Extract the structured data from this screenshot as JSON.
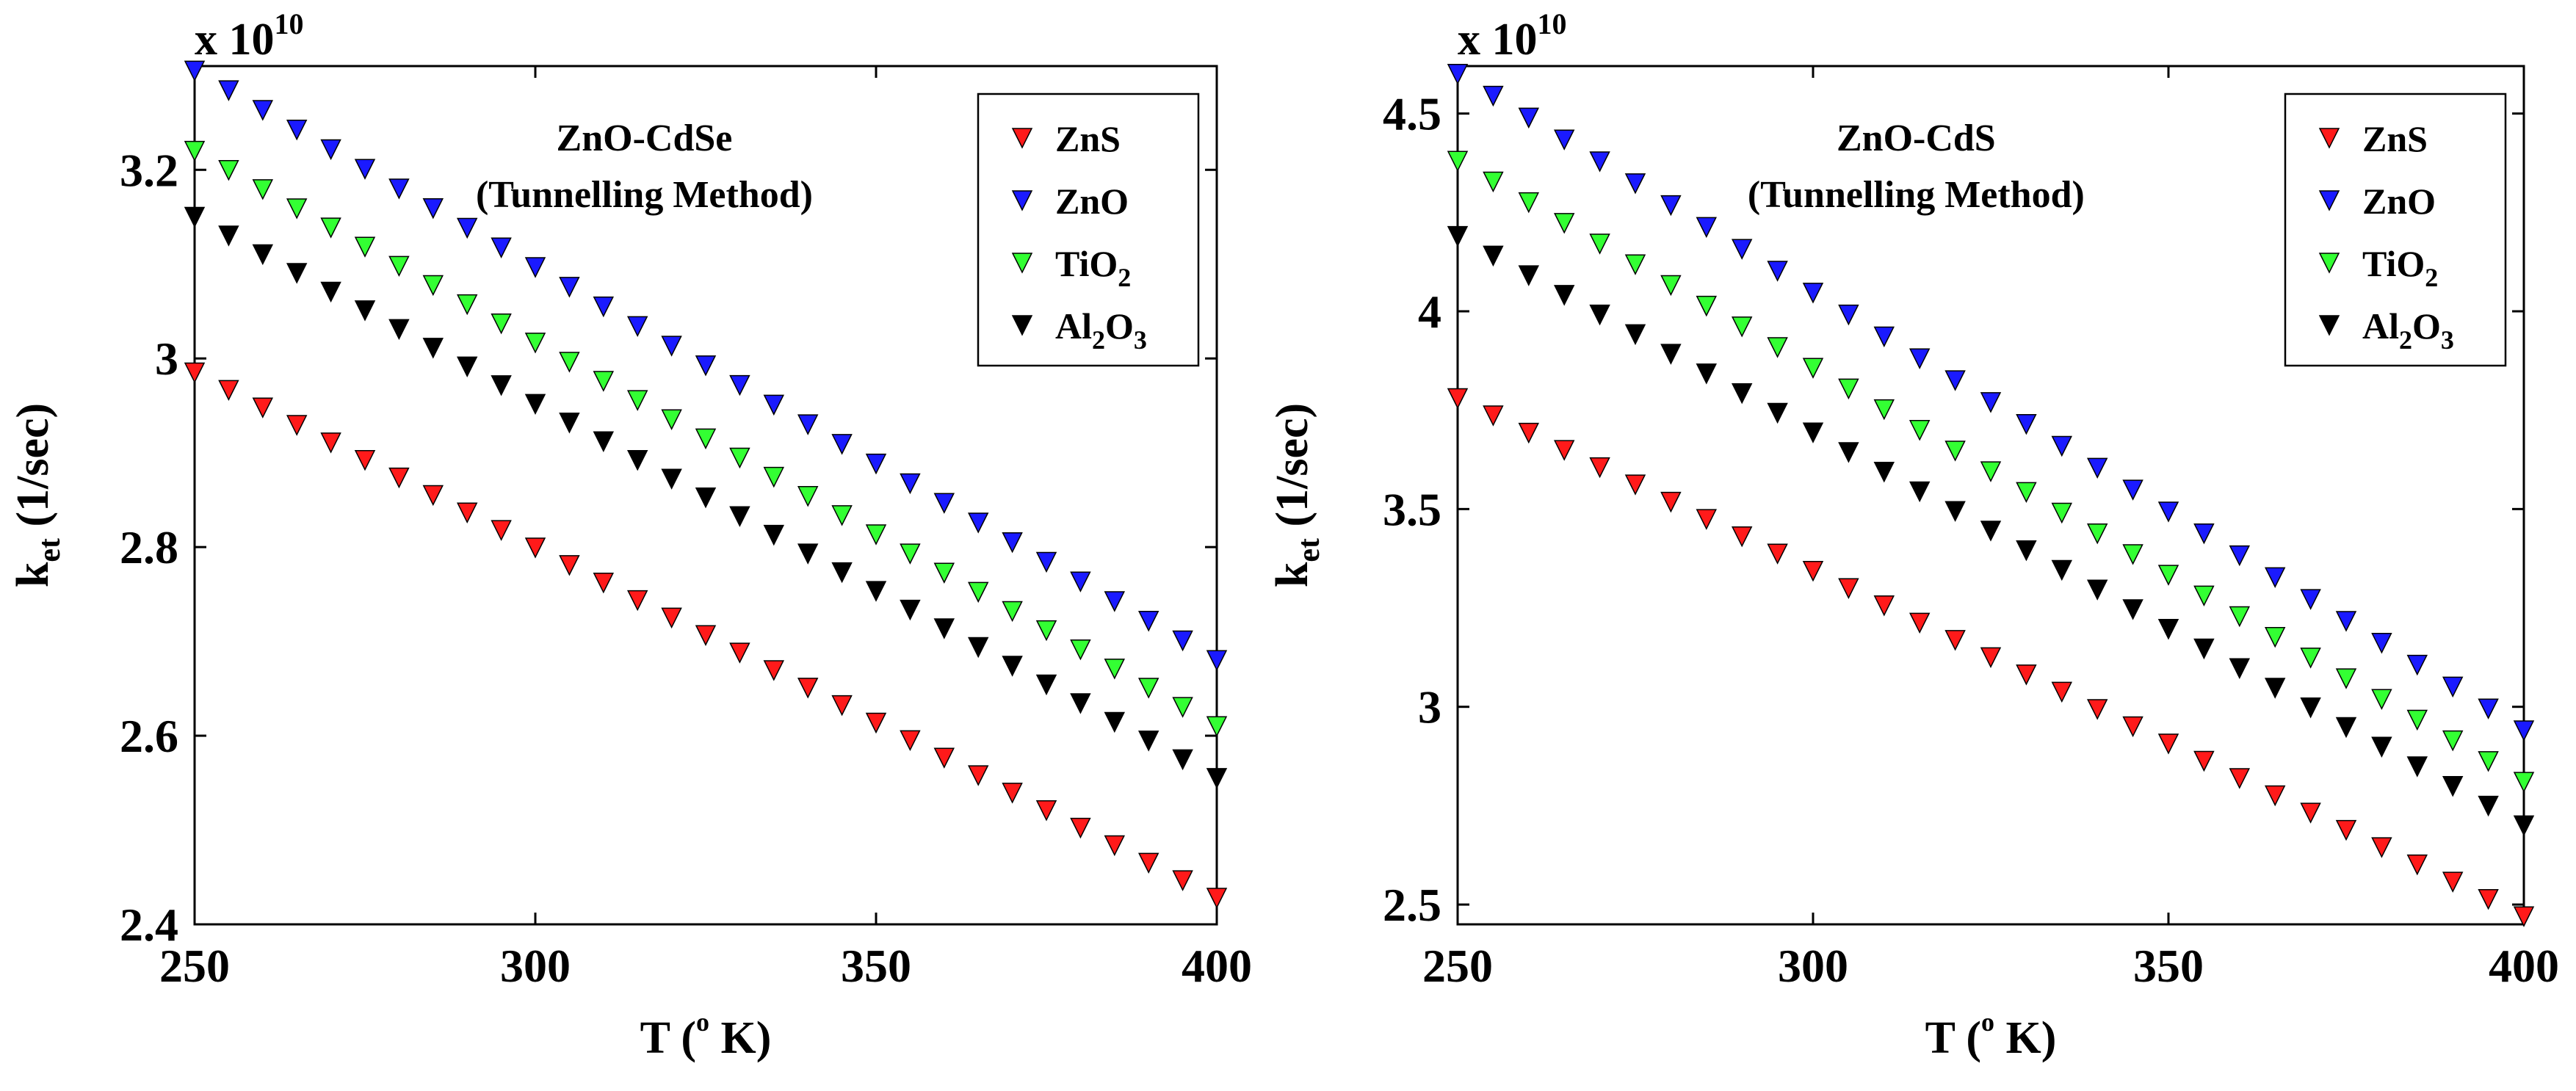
{
  "chart_data": [
    {
      "type": "scatter",
      "title": "ZnO-CdSe",
      "subtitle": "(Tunnelling Method)",
      "xlabel": "T (",
      "xlabel_deg": "o",
      "xlabel_unit": " K)",
      "ylabel": "k",
      "ylabel_sub": "et",
      "ylabel_unit": " (1/sec)",
      "exponent_prefix": "x 10",
      "exponent_power": "10",
      "xlim": [
        250,
        400
      ],
      "ylim": [
        2.4,
        3.31
      ],
      "xticks": [
        250,
        300,
        350,
        400
      ],
      "xtick_labels": [
        "250",
        "300",
        "350",
        "400"
      ],
      "yticks": [
        2.4,
        2.6,
        2.8,
        3.0,
        3.2
      ],
      "ytick_labels": [
        "2.4",
        "2.6",
        "2.8",
        "3",
        "3.2"
      ],
      "x_start": 250,
      "x_step": 5,
      "x_count": 31,
      "legend_position": "top-right",
      "series": [
        {
          "name": "ZnS",
          "base": "ZnS",
          "sub1": "",
          "mid": "",
          "sub2": "",
          "color": "#ff1a1a",
          "start": 2.985,
          "end": 2.428
        },
        {
          "name": "ZnO",
          "base": "ZnO",
          "sub1": "",
          "mid": "",
          "sub2": "",
          "color": "#1a1aff",
          "start": 3.305,
          "end": 2.68
        },
        {
          "name": "TiO2",
          "base": "TiO",
          "sub1": "2",
          "mid": "",
          "sub2": "",
          "color": "#33ff33",
          "start": 3.22,
          "end": 2.61
        },
        {
          "name": "Al2O3",
          "base": "Al",
          "sub1": "2",
          "mid": "O",
          "sub2": "3",
          "color": "#000000",
          "start": 3.15,
          "end": 2.555
        }
      ]
    },
    {
      "type": "scatter",
      "title": "ZnO-CdS",
      "subtitle": "(Tunnelling Method)",
      "xlabel": "T (",
      "xlabel_deg": "o",
      "xlabel_unit": " K)",
      "ylabel": "k",
      "ylabel_sub": "et",
      "ylabel_unit": " (1/sec)",
      "exponent_prefix": "x 10",
      "exponent_power": "10",
      "xlim": [
        250,
        400
      ],
      "ylim": [
        2.45,
        4.62
      ],
      "xticks": [
        250,
        300,
        350,
        400
      ],
      "xtick_labels": [
        "250",
        "300",
        "350",
        "400"
      ],
      "yticks": [
        2.5,
        3.0,
        3.5,
        4.0,
        4.5
      ],
      "ytick_labels": [
        "2.5",
        "3",
        "3.5",
        "4",
        "4.5"
      ],
      "x_start": 250,
      "x_step": 5,
      "x_count": 31,
      "legend_position": "top-right",
      "series": [
        {
          "name": "ZnS",
          "base": "ZnS",
          "sub1": "",
          "mid": "",
          "sub2": "",
          "color": "#ff1a1a",
          "start": 3.78,
          "end": 2.47
        },
        {
          "name": "ZnO",
          "base": "ZnO",
          "sub1": "",
          "mid": "",
          "sub2": "",
          "color": "#1a1aff",
          "start": 4.6,
          "end": 2.94
        },
        {
          "name": "TiO2",
          "base": "TiO",
          "sub1": "2",
          "mid": "",
          "sub2": "",
          "color": "#33ff33",
          "start": 4.38,
          "end": 2.81
        },
        {
          "name": "Al2O3",
          "base": "Al",
          "sub1": "2",
          "mid": "O",
          "sub2": "3",
          "color": "#000000",
          "start": 4.19,
          "end": 2.7
        }
      ]
    }
  ]
}
